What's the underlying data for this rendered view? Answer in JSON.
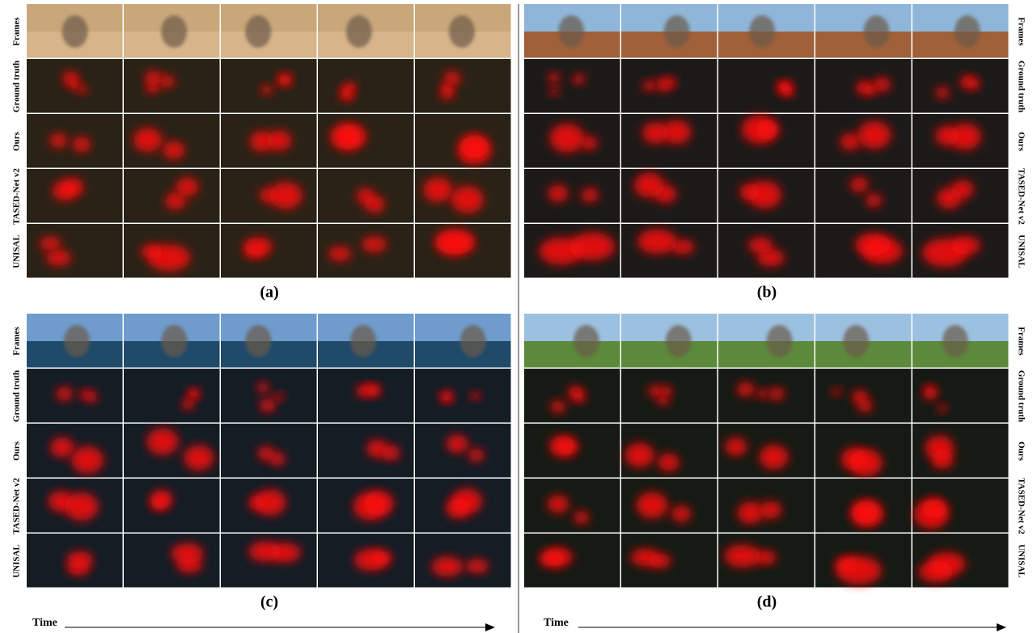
{
  "panels": [
    {
      "caption": "(a)",
      "row_labels": [
        "Frames",
        "Ground truth",
        "Ours",
        "TASED-Net v2",
        "UNISAL"
      ]
    },
    {
      "caption": "(b)",
      "row_labels": [
        "Frames",
        "Ground truth",
        "Ours",
        "TASED-Net v2",
        "UNISAL"
      ]
    },
    {
      "caption": "(c)",
      "row_labels": [
        "Frames",
        "Ground truth",
        "Ours",
        "TASED-Net v2",
        "UNISAL"
      ]
    },
    {
      "caption": "(d)",
      "row_labels": [
        "Frames",
        "Ground truth",
        "Ours",
        "TASED-Net v2",
        "UNISAL"
      ]
    }
  ],
  "time_labels": [
    "Time",
    "Time"
  ]
}
